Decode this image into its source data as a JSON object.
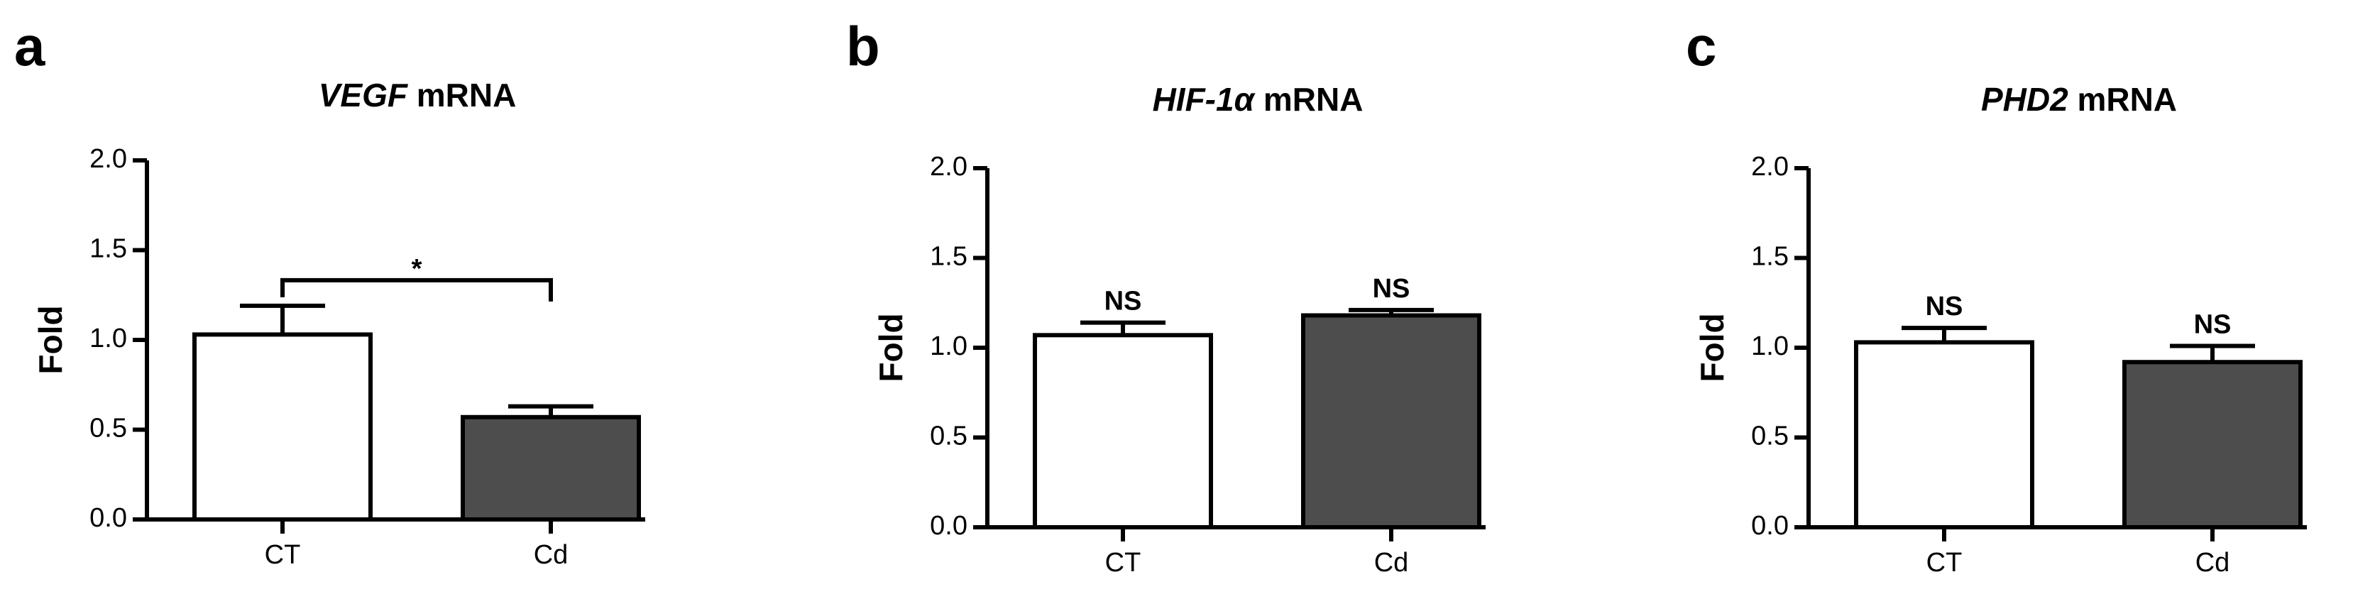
{
  "chart_data": [
    {
      "type": "bar",
      "panel": "a",
      "title": {
        "gene": "VEGF",
        "rest": "mRNA"
      },
      "ylabel": "Fold",
      "categories": [
        "CT",
        "Cd"
      ],
      "values": [
        1.03,
        0.57
      ],
      "errors": [
        0.16,
        0.06
      ],
      "colors": [
        "#ffffff",
        "#4d4d4d"
      ],
      "significance": "*",
      "ylim": [
        0,
        2
      ],
      "yticks": [
        {
          "value": 0,
          "label": "0.0"
        },
        {
          "value": 0.5,
          "label": "0.5"
        },
        {
          "value": 1,
          "label": "1.0"
        },
        {
          "value": 1.5,
          "label": "1.5"
        },
        {
          "value": 2,
          "label": "2.0"
        }
      ]
    },
    {
      "type": "bar",
      "panel": "b",
      "title": {
        "gene": "HIF-1α",
        "rest": "mRNA"
      },
      "ylabel": "Fold",
      "categories": [
        "CT",
        "Cd"
      ],
      "values": [
        1.07,
        1.18
      ],
      "errors": [
        0.07,
        0.03
      ],
      "colors": [
        "#ffffff",
        "#4d4d4d"
      ],
      "value_labels": [
        "NS",
        "NS"
      ],
      "ylim": [
        0,
        2
      ],
      "yticks": [
        {
          "value": 0,
          "label": "0.0"
        },
        {
          "value": 0.5,
          "label": "0.5"
        },
        {
          "value": 1,
          "label": "1.0"
        },
        {
          "value": 1.5,
          "label": "1.5"
        },
        {
          "value": 2,
          "label": "2.0"
        }
      ]
    },
    {
      "type": "bar",
      "panel": "c",
      "title": {
        "gene": "PHD2",
        "rest": "mRNA"
      },
      "ylabel": "Fold",
      "categories": [
        "CT",
        "Cd"
      ],
      "values": [
        1.03,
        0.92
      ],
      "errors": [
        0.08,
        0.09
      ],
      "colors": [
        "#ffffff",
        "#4d4d4d"
      ],
      "value_labels": [
        "NS",
        "NS"
      ],
      "ylim": [
        0,
        2
      ],
      "yticks": [
        {
          "value": 0,
          "label": "0.0"
        },
        {
          "value": 0.5,
          "label": "0.5"
        },
        {
          "value": 1,
          "label": "1.0"
        },
        {
          "value": 1.5,
          "label": "1.5"
        },
        {
          "value": 2,
          "label": "2.0"
        }
      ]
    }
  ]
}
